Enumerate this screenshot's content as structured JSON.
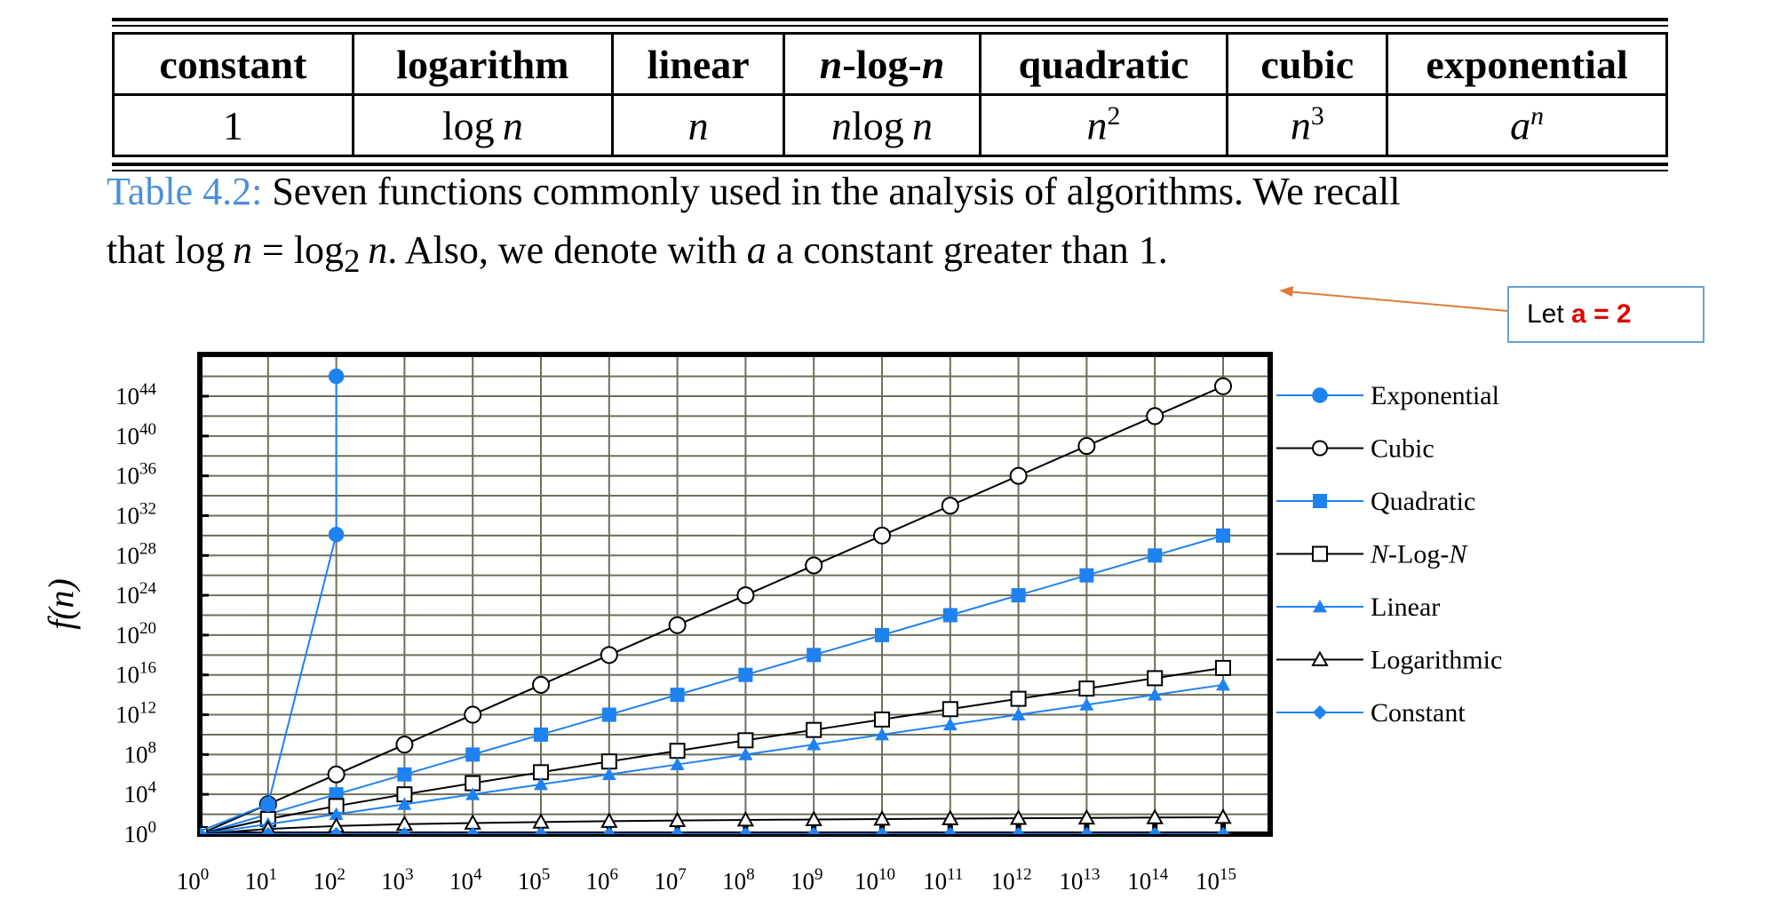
{
  "table": {
    "headers": [
      "constant",
      "logarithm",
      "linear",
      "n-log-n",
      "quadratic",
      "cubic",
      "exponential"
    ],
    "values": [
      "1",
      "log n",
      "n",
      "n log n",
      "n2",
      "n3",
      "an"
    ]
  },
  "caption": {
    "label": "Table 4.2:",
    "line1": "Seven functions commonly used in the analysis of algorithms. We recall",
    "line2": "that log n = log2 n. Also, we denote with a a constant greater than 1."
  },
  "note": {
    "prefix": "Let ",
    "emphasis": "a = 2"
  },
  "colors": {
    "blue": "#1e82f0",
    "black": "#000000",
    "grid": "#6e6e5a",
    "arrow": "#e07b39"
  },
  "chart_data": {
    "type": "line",
    "xscale": "log10",
    "yscale": "log10",
    "xlim": [
      1,
      1000000000000000.0
    ],
    "ylim": [
      1,
      1e+46
    ],
    "ylabel": "f(n)",
    "xlabel": "",
    "x_ticks": [
      "10^0",
      "10^1",
      "10^2",
      "10^3",
      "10^4",
      "10^5",
      "10^6",
      "10^7",
      "10^8",
      "10^9",
      "10^10",
      "10^11",
      "10^12",
      "10^13",
      "10^14",
      "10^15"
    ],
    "y_ticks": [
      "10^0",
      "10^4",
      "10^8",
      "10^12",
      "10^16",
      "10^20",
      "10^24",
      "10^28",
      "10^32",
      "10^36",
      "10^40",
      "10^44"
    ],
    "grid": true,
    "legend": "right",
    "series": [
      {
        "name": "Exponential",
        "color": "#1e82f0",
        "marker": "filled-circle",
        "x": [
          1,
          10,
          100,
          100
        ],
        "log10_y": [
          0.301,
          3.01,
          30.1,
          46
        ]
      },
      {
        "name": "Cubic",
        "color": "#000000",
        "marker": "open-circle",
        "x": [
          1,
          10,
          100,
          1000,
          10000,
          100000,
          1000000.0,
          10000000.0,
          100000000.0,
          1000000000.0,
          10000000000.0,
          100000000000.0,
          1000000000000.0,
          10000000000000.0,
          100000000000000.0,
          1000000000000000.0
        ],
        "log10_y": [
          0,
          3,
          6,
          9,
          12,
          15,
          18,
          21,
          24,
          27,
          30,
          33,
          36,
          39,
          42,
          45
        ]
      },
      {
        "name": "Quadratic",
        "color": "#1e82f0",
        "marker": "filled-square",
        "x": [
          1,
          10,
          100,
          1000,
          10000,
          100000,
          1000000.0,
          10000000.0,
          100000000.0,
          1000000000.0,
          10000000000.0,
          100000000000.0,
          1000000000000.0,
          10000000000000.0,
          100000000000000.0,
          1000000000000000.0
        ],
        "log10_y": [
          0,
          2,
          4,
          6,
          8,
          10,
          12,
          14,
          16,
          18,
          20,
          22,
          24,
          26,
          28,
          30
        ]
      },
      {
        "name": "N-Log-N",
        "color": "#000000",
        "marker": "open-square",
        "x": [
          1,
          10,
          100,
          1000,
          10000,
          100000,
          1000000.0,
          10000000.0,
          100000000.0,
          1000000000.0,
          10000000000.0,
          100000000000.0,
          1000000000000.0,
          10000000000000.0,
          100000000000000.0,
          1000000000000000.0
        ],
        "log10_y": [
          0,
          1.52,
          2.82,
          4,
          5.12,
          6.22,
          7.3,
          8.37,
          9.43,
          10.47,
          11.52,
          12.56,
          13.6,
          14.63,
          15.67,
          16.7
        ]
      },
      {
        "name": "Linear",
        "color": "#1e82f0",
        "marker": "filled-triangle",
        "x": [
          1,
          10,
          100,
          1000,
          10000,
          100000,
          1000000.0,
          10000000.0,
          100000000.0,
          1000000000.0,
          10000000000.0,
          100000000000.0,
          1000000000000.0,
          10000000000000.0,
          100000000000000.0,
          1000000000000000.0
        ],
        "log10_y": [
          0,
          1,
          2,
          3,
          4,
          5,
          6,
          7,
          8,
          9,
          10,
          11,
          12,
          13,
          14,
          15
        ]
      },
      {
        "name": "Logarithmic",
        "color": "#000000",
        "marker": "open-triangle",
        "x": [
          1,
          10,
          100,
          1000,
          10000,
          100000,
          1000000.0,
          10000000.0,
          100000000.0,
          1000000000.0,
          10000000000.0,
          100000000000.0,
          1000000000000.0,
          10000000000000.0,
          100000000000000.0,
          1000000000000000.0
        ],
        "log10_y": [
          0,
          0.52,
          0.82,
          1,
          1.12,
          1.22,
          1.3,
          1.37,
          1.43,
          1.47,
          1.52,
          1.56,
          1.6,
          1.63,
          1.67,
          1.7
        ]
      },
      {
        "name": "Constant",
        "color": "#1e82f0",
        "marker": "filled-diamond",
        "x": [
          1,
          10,
          100,
          1000,
          10000,
          100000,
          1000000.0,
          10000000.0,
          100000000.0,
          1000000000.0,
          10000000000.0,
          100000000000.0,
          1000000000000.0,
          10000000000000.0,
          100000000000000.0,
          1000000000000000.0
        ],
        "log10_y": [
          0,
          0,
          0,
          0,
          0,
          0,
          0,
          0,
          0,
          0,
          0,
          0,
          0,
          0,
          0,
          0
        ]
      }
    ]
  }
}
